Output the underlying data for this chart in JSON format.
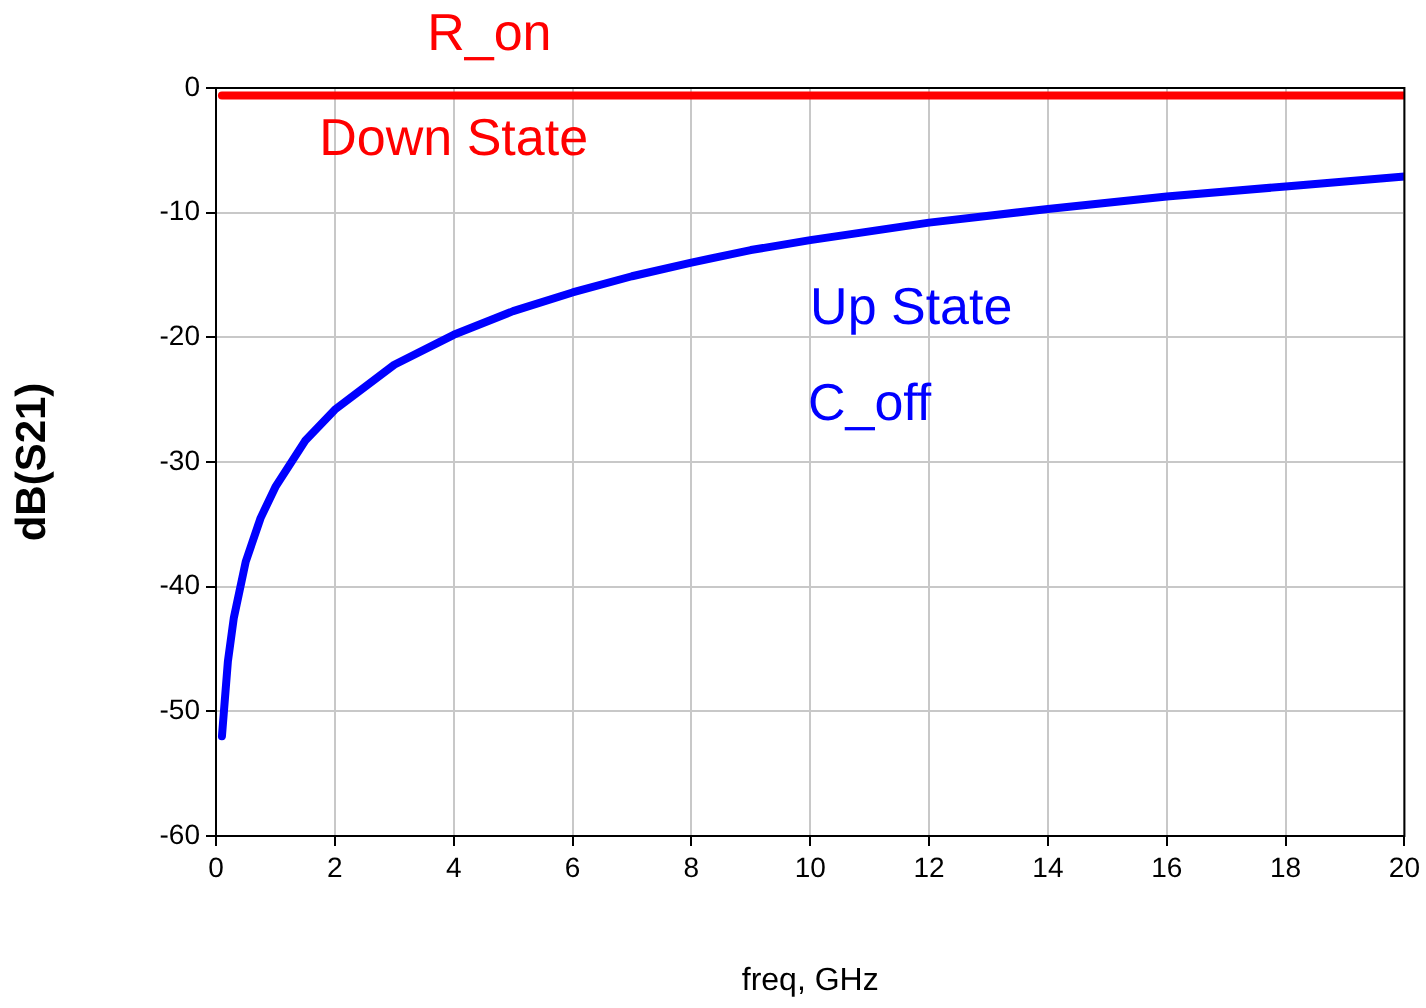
{
  "chart_data": {
    "type": "line",
    "xlabel": "freq, GHz",
    "ylabel": "dB(S21)",
    "xlim": [
      0,
      20
    ],
    "xticks": [
      0,
      2,
      4,
      6,
      8,
      10,
      12,
      14,
      16,
      18,
      20
    ],
    "ylim": [
      -60,
      0
    ],
    "yticks": [
      -60,
      -50,
      -40,
      -30,
      -20,
      -10,
      0
    ],
    "grid": true,
    "legend": false,
    "marker": "none",
    "line_style": "solid",
    "series": [
      {
        "color": "#0000ff",
        "x": [
          0.1,
          0.2,
          0.3,
          0.5,
          0.75,
          1,
          1.5,
          2,
          3,
          4,
          5,
          6,
          7,
          8,
          9,
          10,
          12,
          14,
          16,
          18,
          20
        ],
        "values": [
          -52,
          -46,
          -42.5,
          -38,
          -34.5,
          -32,
          -28.3,
          -25.8,
          -22.2,
          -19.8,
          -17.9,
          -16.4,
          -15.1,
          -14,
          -13,
          -12.2,
          -10.8,
          -9.7,
          -8.7,
          -7.9,
          -7.1
        ]
      },
      {
        "color": "#ff0000",
        "x": [
          0.1,
          20
        ],
        "values": [
          -0.6,
          -0.6
        ]
      }
    ],
    "annotations": [
      "R_on",
      "Down State",
      "Up State",
      "C_off"
    ]
  }
}
